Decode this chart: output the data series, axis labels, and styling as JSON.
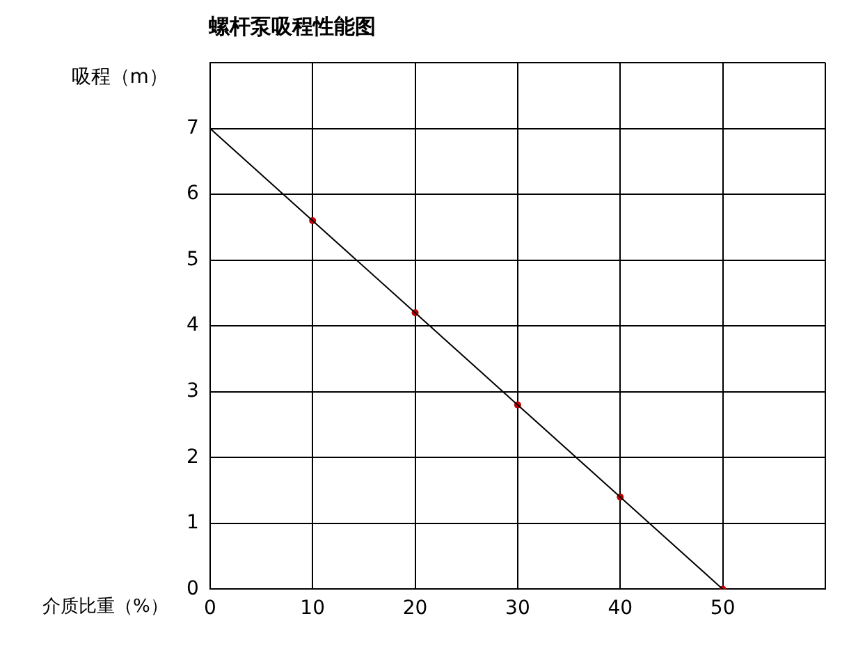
{
  "chart_data": {
    "type": "line",
    "title": "螺杆泵吸程性能图",
    "xlabel": "介质比重（%）",
    "ylabel": "吸程（m）",
    "xlim": [
      0,
      60
    ],
    "xticks": [
      0,
      10,
      20,
      30,
      40,
      50,
      {
        "value": 60,
        "label": null
      }
    ],
    "ylim": [
      0,
      8
    ],
    "yticks": [
      0,
      1,
      2,
      3,
      4,
      5,
      6,
      7,
      {
        "value": 8,
        "label": null
      }
    ],
    "grid": true,
    "legend": false,
    "series": [
      {
        "type": "line",
        "color": "#000000",
        "marker": "none",
        "x": [
          0,
          10,
          20,
          30,
          40,
          50
        ],
        "values": [
          7,
          5.6,
          4.2,
          2.8,
          1.4,
          0
        ]
      },
      {
        "type": "scatter",
        "color": "#c00000",
        "marker": "circle",
        "x": [
          10,
          20,
          30,
          40,
          50
        ],
        "values": [
          5.6,
          4.2,
          2.8,
          1.4,
          0
        ]
      }
    ]
  }
}
